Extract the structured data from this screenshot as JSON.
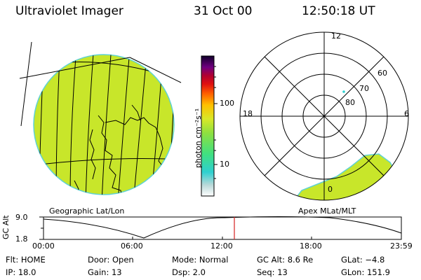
{
  "header": {
    "instrument": "Ultraviolet Imager",
    "date": "31 Oct 00",
    "time": "12:50:18 UT"
  },
  "colorbar": {
    "unit_label": "photon cm⁻²s⁻¹",
    "ticks": [
      "100",
      "10"
    ]
  },
  "polar_plot": {
    "mlt_labels": {
      "top": "12",
      "left": "18",
      "right": "6",
      "bottom": "0"
    },
    "lat_labels": [
      "60",
      "70",
      "80"
    ]
  },
  "panel_labels": {
    "geo": "Geographic Lat/Lon",
    "apex": "Apex MLat/MLT"
  },
  "altitude_strip": {
    "axis_label": "GC Alt",
    "y_ticks": [
      "9.0",
      "1.8"
    ],
    "x_ticks": [
      "00:00",
      "06:00",
      "12:00",
      "18:00",
      "23:59"
    ]
  },
  "info": {
    "row1": {
      "flt": "Flt: HOME",
      "door": "Door: Open",
      "mode": "Mode: Normal",
      "gcalt": "GC Alt: 8.6 Re",
      "glat": "GLat:  −4.8"
    },
    "row2": {
      "ip": "IP: 18.0",
      "gain": "Gain: 13",
      "dsp": "Dsp:    2.0",
      "seq": "Seq: 13",
      "glon": "GLon: 151.9"
    }
  },
  "colors": {
    "image_fill": "#c8e62a",
    "image_edge": "#5fd2d2",
    "marker": "#d62020"
  }
}
